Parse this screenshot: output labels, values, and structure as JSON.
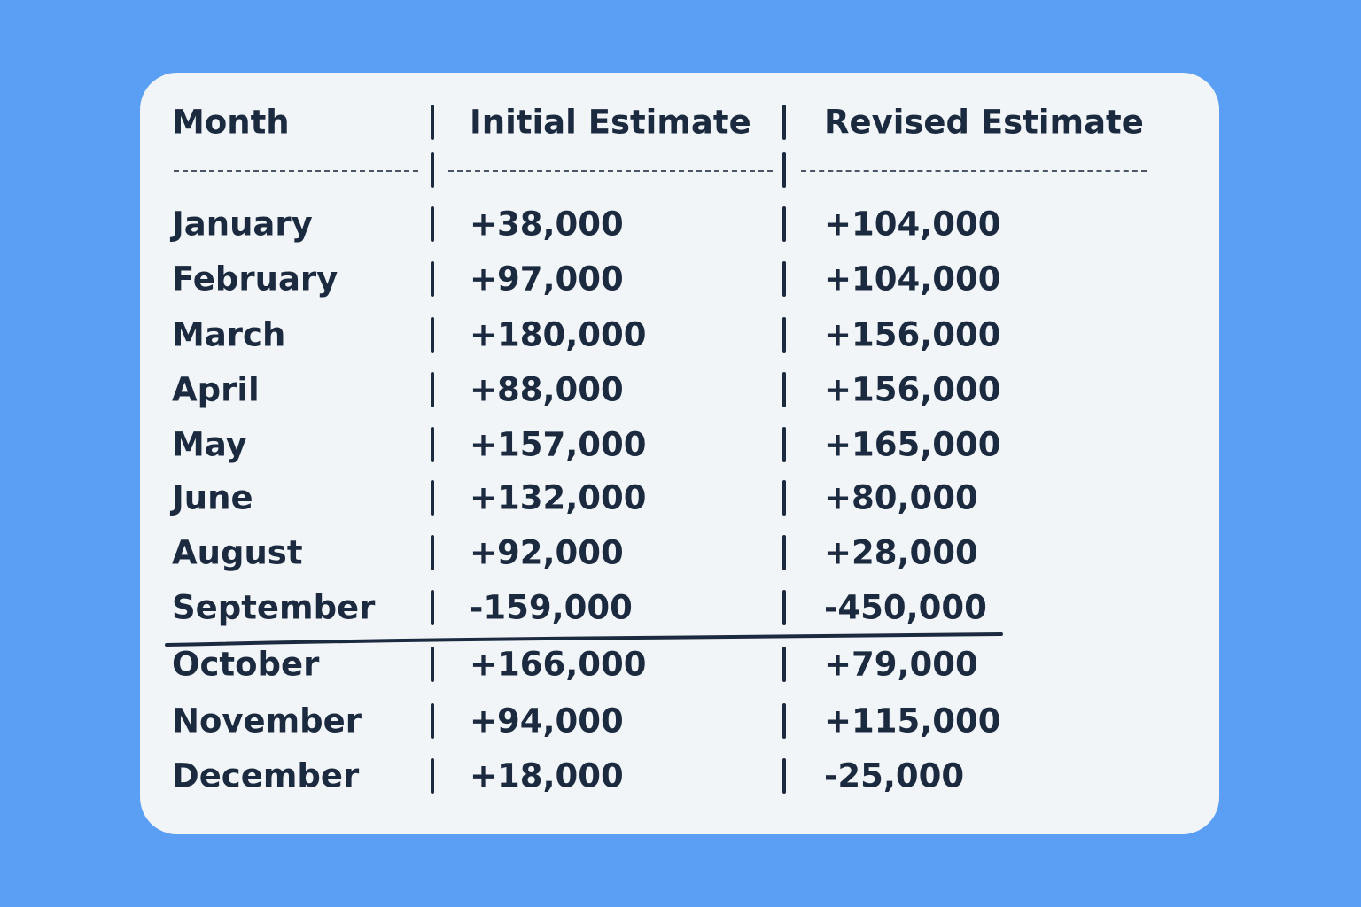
{
  "table": {
    "header": [
      "Month",
      "Initial Estimate",
      "Revised Estimate"
    ],
    "rows": [
      [
        "January",
        "+38,000",
        "+104,000"
      ],
      [
        "February",
        "+97,000",
        "+104,000"
      ],
      [
        "March",
        "+180,000",
        "+156,000"
      ],
      [
        "April",
        "+88,000",
        "+156,000"
      ],
      [
        "May",
        "+157,000",
        "+165,000"
      ],
      [
        "June",
        "+132,000",
        "+80,000"
      ],
      [
        "August",
        "+92,000",
        "+28,000"
      ],
      [
        "September",
        "-159,000",
        "-450,000"
      ],
      [
        "October",
        "+166,000",
        "+79,000"
      ],
      [
        "November",
        "+94,000",
        "+115,000"
      ],
      [
        "December",
        "+18,000",
        "-25,000"
      ]
    ]
  }
}
